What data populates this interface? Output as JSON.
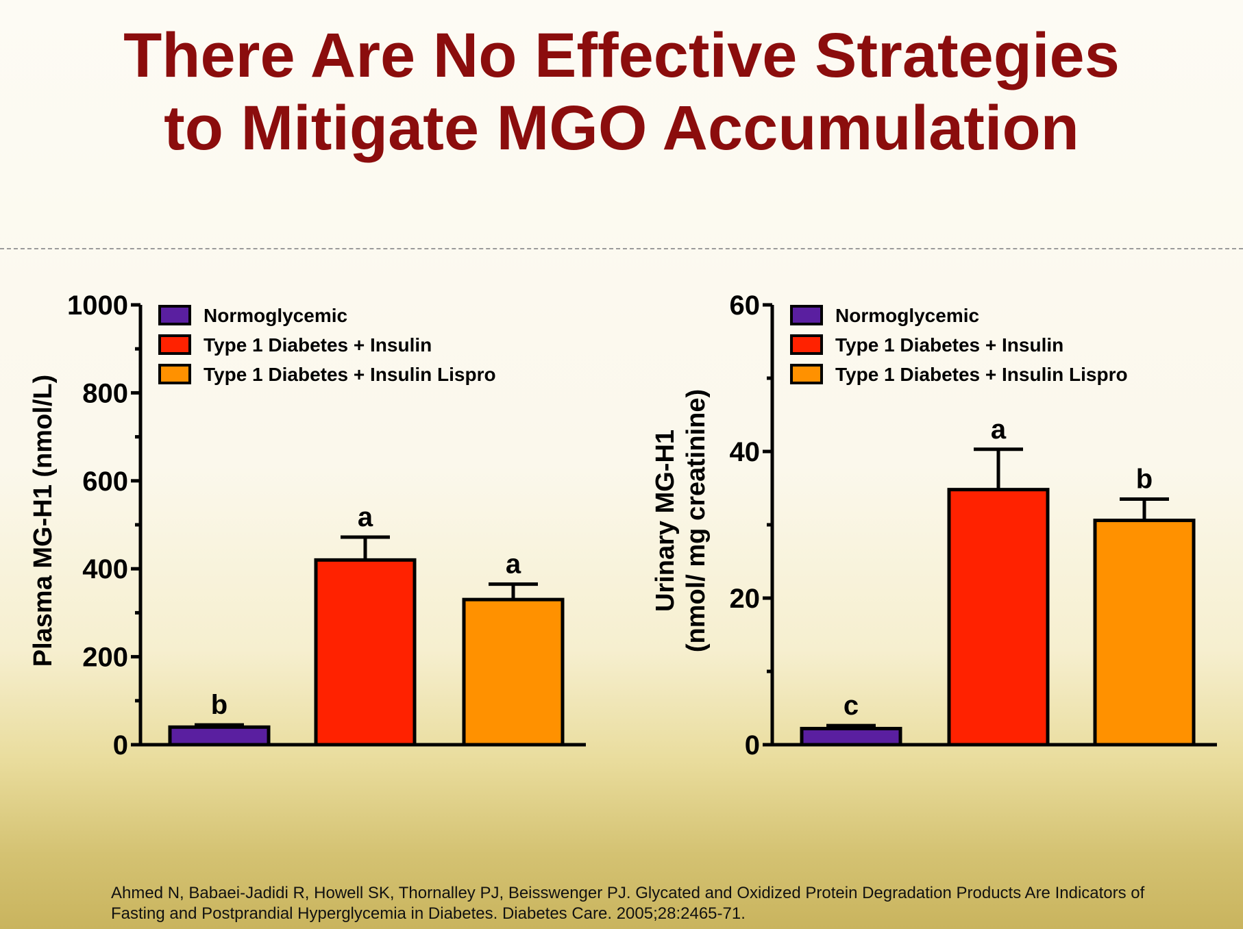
{
  "slide": {
    "title_line1": "There Are No Effective Strategies",
    "title_line2": "to Mitigate MGO Accumulation",
    "citation_line1": "Ahmed N, Babaei-Jadidi R, Howell SK, Thornalley PJ, Beisswenger PJ. Glycated and Oxidized Protein Degradation Products Are Indicators of",
    "citation_line2": "Fasting and Postprandial Hyperglycemia in Diabetes. Diabetes Care. 2005;28:2465-71."
  },
  "chart_data": [
    {
      "type": "bar",
      "title": "",
      "xlabel": "",
      "ylabel": "Plasma MG-H1 (nmol/L)",
      "ylim": [
        0,
        1000
      ],
      "yticks": [
        0,
        200,
        400,
        600,
        800,
        1000
      ],
      "ytick_labels": [
        "0",
        "200",
        "400",
        "600",
        "800",
        "1000"
      ],
      "minor_ticks": [
        100,
        300,
        500,
        700,
        900
      ],
      "legend": [
        "Normoglycemic",
        "Type 1 Diabetes + Insulin",
        "Type 1 Diabetes + Insulin Lispro"
      ],
      "legend_position": "top-left",
      "categories": [
        "Normoglycemic",
        "Type 1 Diabetes + Insulin",
        "Type 1 Diabetes + Insulin Lispro"
      ],
      "values": [
        40,
        420,
        330
      ],
      "errors": [
        5,
        52,
        35
      ],
      "annotations": [
        "b",
        "a",
        "a"
      ],
      "colors": [
        "#5a1fa0",
        "#ff2200",
        "#ff9100"
      ]
    },
    {
      "type": "bar",
      "title": "",
      "xlabel": "",
      "ylabel_line1": "Urinary MG-H1",
      "ylabel_line2": "(nmol/ mg creatinine)",
      "ylim": [
        0,
        60
      ],
      "yticks": [
        0,
        20,
        40,
        60
      ],
      "ytick_labels": [
        "0",
        "20",
        "40",
        "60"
      ],
      "minor_ticks": [
        10,
        30,
        50
      ],
      "legend": [
        "Normoglycemic",
        "Type 1 Diabetes + Insulin",
        "Type 1 Diabetes + Insulin Lispro"
      ],
      "legend_position": "top-left",
      "categories": [
        "Normoglycemic",
        "Type 1 Diabetes + Insulin",
        "Type 1 Diabetes + Insulin Lispro"
      ],
      "values": [
        2.2,
        34.8,
        30.6
      ],
      "errors": [
        0.4,
        5.5,
        2.9
      ],
      "annotations": [
        "c",
        "a",
        "b"
      ],
      "colors": [
        "#5a1fa0",
        "#ff2200",
        "#ff9100"
      ]
    }
  ]
}
